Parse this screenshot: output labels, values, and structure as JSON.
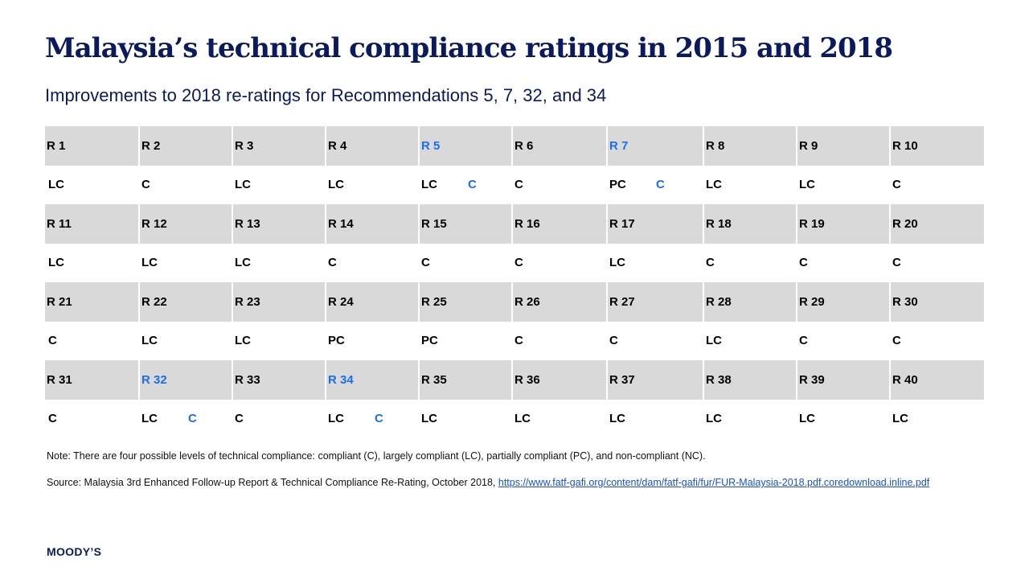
{
  "title": "Malaysia’s technical compliance ratings in 2015 and 2018",
  "subtitle": "Improvements to 2018 re-ratings for Recommendations 5, 7, 32, and 34",
  "colors": {
    "highlight": "#1a6ef0",
    "navy": "#0b1a5c",
    "header_bg": "#d9d9d9"
  },
  "rows": [
    {
      "headers": [
        "R 1",
        "R 2",
        "R 3",
        "R 4",
        "R 5",
        "R 6",
        "R 7",
        "R 8",
        "R 9",
        "R 10"
      ],
      "values": [
        "LC",
        "C",
        "LC",
        "LC",
        "LC",
        "C",
        "PC",
        "LC",
        "LC",
        "C"
      ],
      "new_values": [
        "",
        "",
        "",
        "",
        "C",
        "",
        "C",
        "",
        "",
        ""
      ]
    },
    {
      "headers": [
        "R 11",
        "R 12",
        "R 13",
        "R 14",
        "R 15",
        "R 16",
        "R 17",
        "R 18",
        "R 19",
        "R 20"
      ],
      "values": [
        "LC",
        "LC",
        "LC",
        "C",
        "C",
        "C",
        "LC",
        "C",
        "C",
        "C"
      ],
      "new_values": [
        "",
        "",
        "",
        "",
        "",
        "",
        "",
        "",
        "",
        ""
      ]
    },
    {
      "headers": [
        "R 21",
        "R 22",
        "R 23",
        "R 24",
        "R 25",
        "R 26",
        "R 27",
        "R 28",
        "R 29",
        "R 30"
      ],
      "values": [
        "C",
        "LC",
        "LC",
        "PC",
        "PC",
        "C",
        "C",
        "LC",
        "C",
        "C"
      ],
      "new_values": [
        "",
        "",
        "",
        "",
        "",
        "",
        "",
        "",
        "",
        ""
      ]
    },
    {
      "headers": [
        "R 31",
        "R 32",
        "R 33",
        "R 34",
        "R 35",
        "R 36",
        "R 37",
        "R 38",
        "R 39",
        "R 40"
      ],
      "values": [
        "C",
        "LC",
        "C",
        "LC",
        "LC",
        "LC",
        "LC",
        "LC",
        "LC",
        "LC"
      ],
      "new_values": [
        "",
        "C",
        "",
        "C",
        "",
        "",
        "",
        "",
        "",
        ""
      ]
    }
  ],
  "note": "Note: There are four possible levels of technical compliance: compliant (C), largely compliant (LC), partially compliant (PC), and non-compliant (NC).",
  "source_prefix": "Source: Malaysia 3rd Enhanced Follow-up Report & Technical Compliance Re-Rating, October 2018, ",
  "source_link": "https://www.fatf-gafi.org/content/dam/fatf-gafi/fur/FUR-Malaysia-2018.pdf.coredownload.inline.pdf",
  "logo": "MOODY’S"
}
